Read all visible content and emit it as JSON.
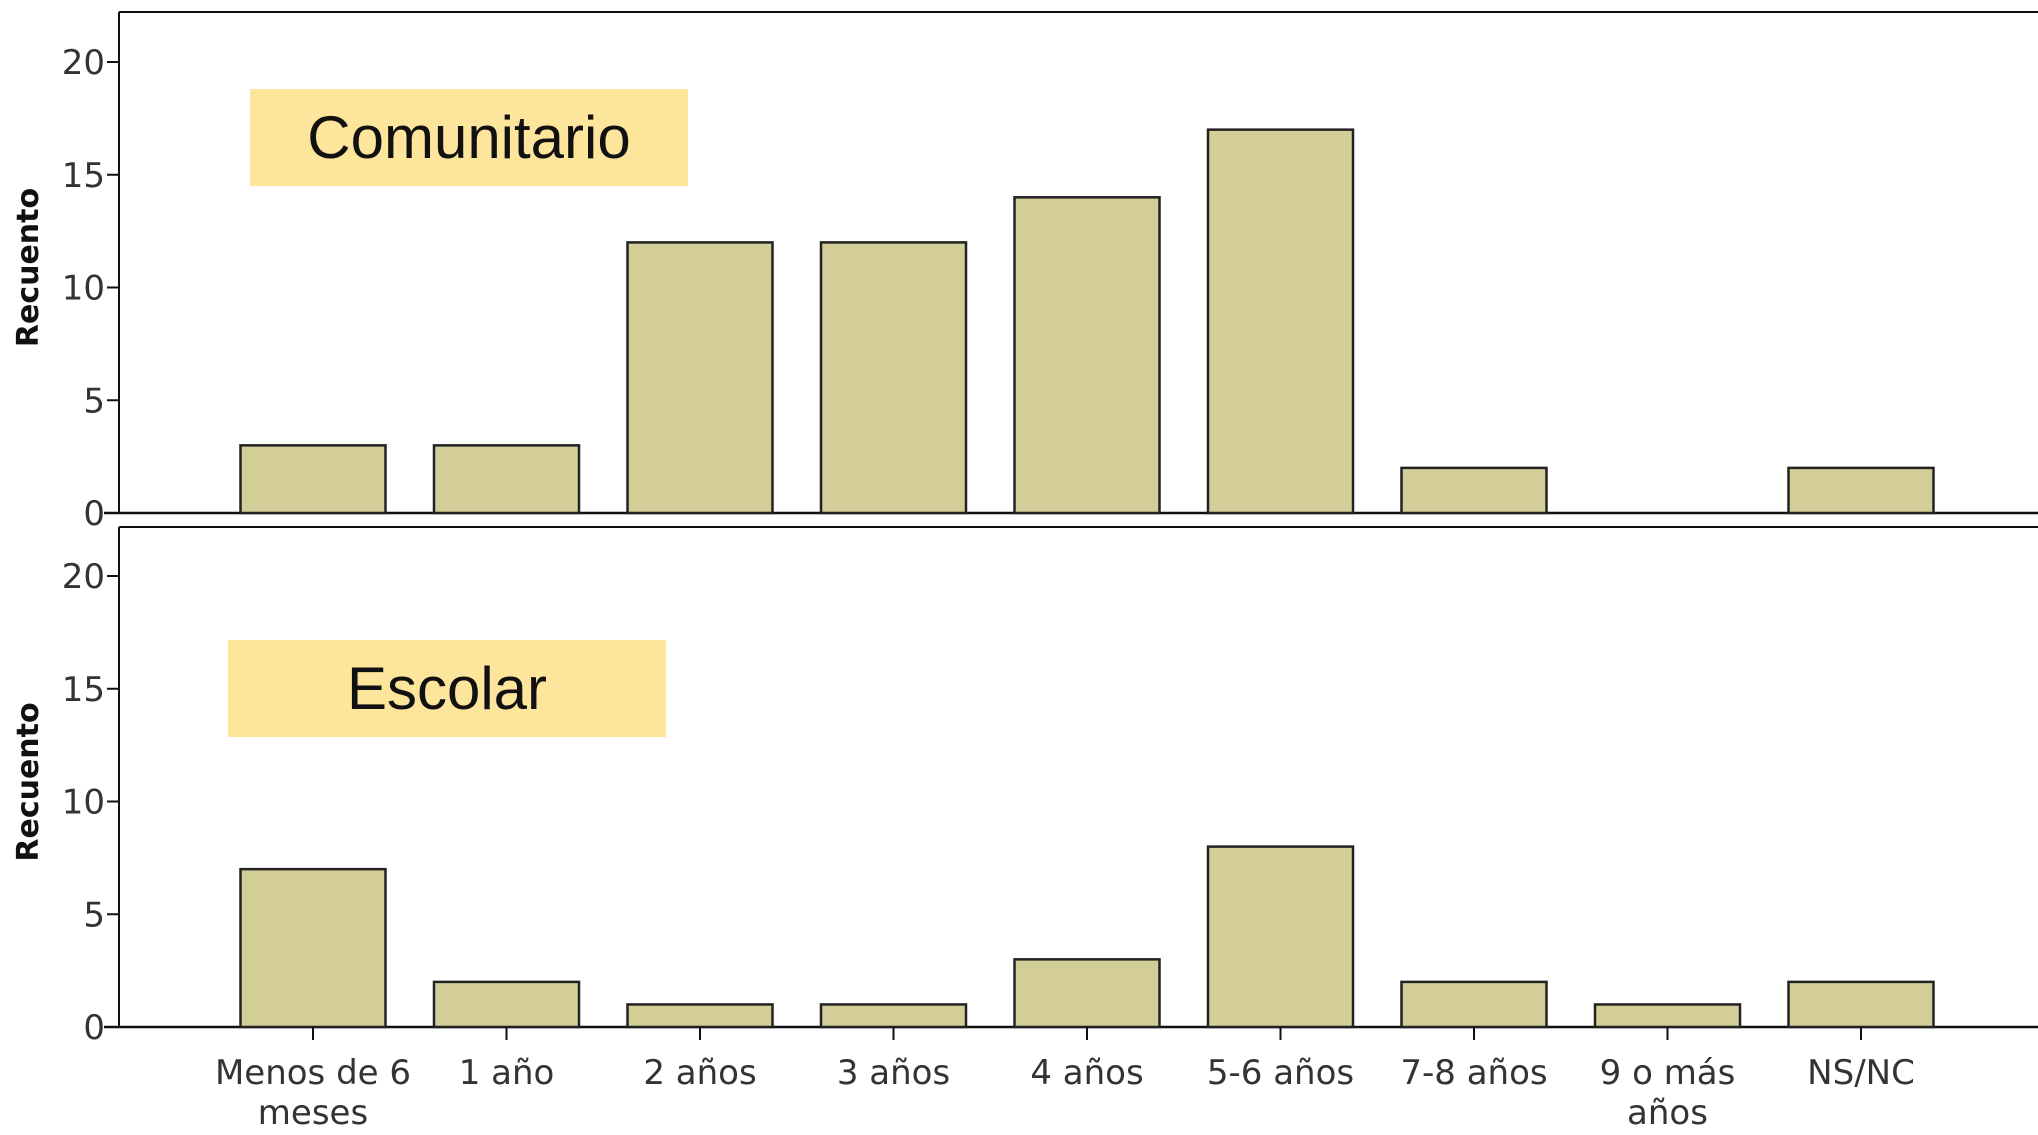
{
  "chart_data": [
    {
      "type": "bar",
      "panel_label": "Comunitario",
      "ylabel": "Recuento",
      "ylim": [
        0,
        22
      ],
      "yticks": [
        0,
        5,
        10,
        15,
        20
      ],
      "categories": [
        "Menos de 6 meses",
        "1 año",
        "2 años",
        "3 años",
        "4 años",
        "5-6 años",
        "7-8 años",
        "9 o más años",
        "NS/NC"
      ],
      "values": [
        3,
        3,
        12,
        12,
        14,
        17,
        2,
        0,
        2
      ]
    },
    {
      "type": "bar",
      "panel_label": "Escolar",
      "ylabel": "Recuento",
      "ylim": [
        0,
        22
      ],
      "yticks": [
        0,
        5,
        10,
        15,
        20
      ],
      "categories": [
        "Menos de 6 meses",
        "1 año",
        "2 años",
        "3 años",
        "4 años",
        "5-6 años",
        "7-8 años",
        "9 o más años",
        "NS/NC"
      ],
      "values": [
        7,
        2,
        1,
        1,
        3,
        8,
        2,
        1,
        2
      ]
    }
  ],
  "x_tick_labels": [
    [
      "Menos de 6",
      "meses"
    ],
    [
      "1 año"
    ],
    [
      "2 años"
    ],
    [
      "3 años"
    ],
    [
      "4 años"
    ],
    [
      "5-6 años"
    ],
    [
      "7-8 años"
    ],
    [
      "9 o más",
      "años"
    ],
    [
      "NS/NC"
    ]
  ],
  "colors": {
    "bar_fill": "#d3ce97",
    "bar_stroke": "#222222",
    "label_box": "#fde59c",
    "frame": "#111111",
    "background": "#ffffff"
  }
}
